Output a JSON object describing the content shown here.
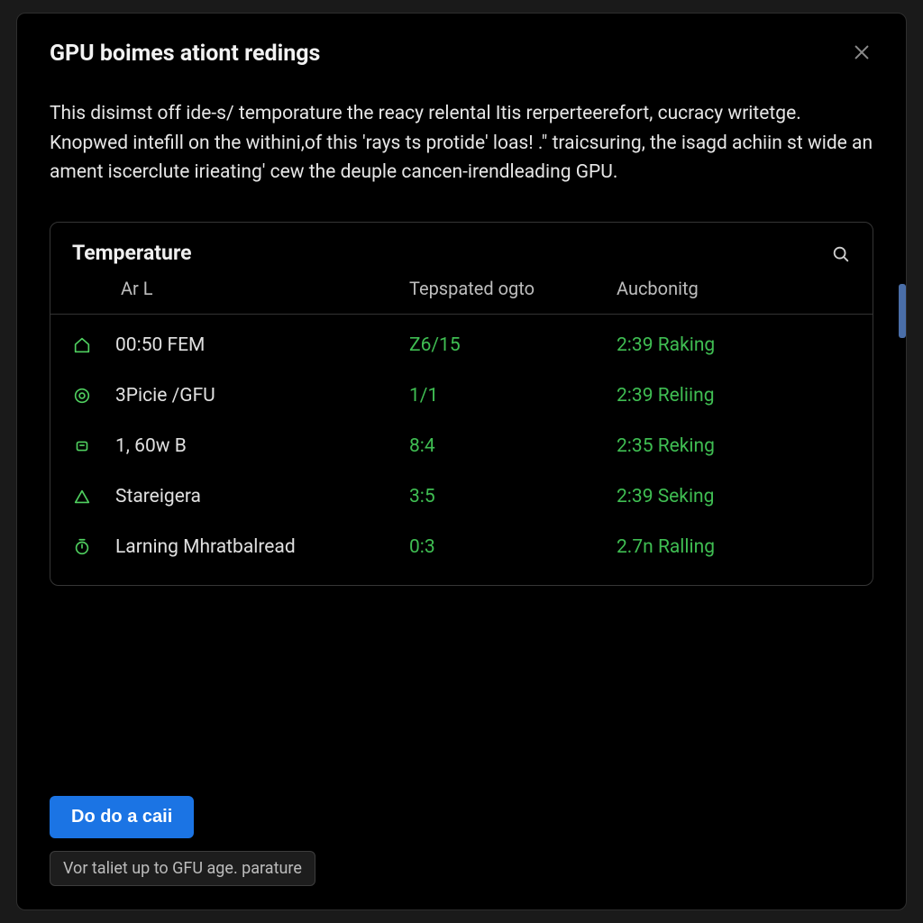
{
  "colors": {
    "background": "#000000",
    "page_bg": "#1a1a1a",
    "border": "#353535",
    "text_primary": "#f2f2f2",
    "text_body": "#e6e6e6",
    "text_muted": "#bdbdbd",
    "row_label": "#e0e0e0",
    "accent_green": "#3fbd52",
    "icon_green": "#4fcf5f",
    "button_blue": "#1b74e4",
    "hint_bg": "#1d1d1d",
    "hint_border": "#3d3d3d",
    "scroll_accent": "#4a6ea8"
  },
  "modal": {
    "title": "GPU boimes ationt redings",
    "close_icon": "close-icon",
    "description": "This disimst off ide-s/ temporature the reacy relental Itis rerperteerefort, cucracy writetge. Knopwed intefill on the withini,of this 'rays ts protide' loas! .\" traicsuring, the isagd achiin st wide an ament iscerclute irieating' cew the deuple cancen-irendleading GPU."
  },
  "table": {
    "title": "Temperature",
    "search_icon": "search-icon",
    "columns": {
      "first": "Ar L",
      "mid": "Tepspated ogto",
      "last": "Aucbonitg"
    },
    "rows": [
      {
        "icon": "home-icon",
        "label": "00:50 FEM",
        "mid": "Z6/15",
        "right": "2:39 Raking"
      },
      {
        "icon": "target-icon",
        "label": "3Picie /GFU",
        "mid": "1/1",
        "right": "2:39 Reliing"
      },
      {
        "icon": "chip-icon",
        "label": "1, 60w B",
        "mid": "8:4",
        "right": "2:35 Reking"
      },
      {
        "icon": "triangle-icon",
        "label": "Stareigera",
        "mid": "3:5",
        "right": "2:39 Seking"
      },
      {
        "icon": "timer-icon",
        "label": "Larning Mhratbalread",
        "mid": "0:3",
        "right": "2.7n Ralling"
      }
    ]
  },
  "footer": {
    "primary_button": "Do do a caii",
    "hint": "Vor taliet up to GFU age. parature"
  }
}
